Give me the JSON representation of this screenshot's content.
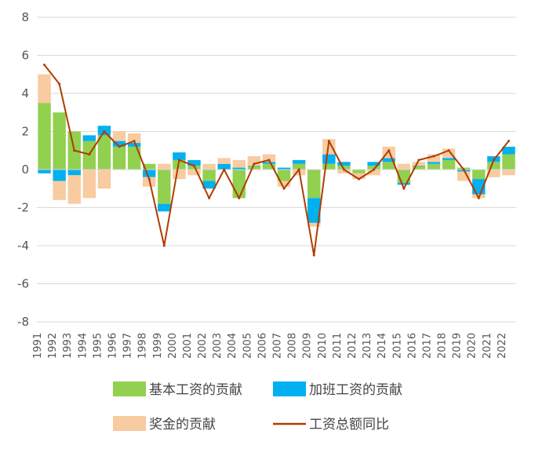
{
  "chart_data": {
    "type": "bar",
    "ylim": [
      -8,
      8
    ],
    "yticks": [
      8,
      6,
      4,
      2,
      0,
      -2,
      -4,
      -6,
      -8
    ],
    "xticks": [
      "1991",
      "1992",
      "1993",
      "1994",
      "1995",
      "1996",
      "1997",
      "1998",
      "1999",
      "2000",
      "2001",
      "2002",
      "2003",
      "2004",
      "2005",
      "2006",
      "2007",
      "2008",
      "2009",
      "2010",
      "2011",
      "2012",
      "2013",
      "2014",
      "2015",
      "2016",
      "2017",
      "2018",
      "2019",
      "2020",
      "2021",
      "2022"
    ],
    "grid": true,
    "legend_position": "bottom",
    "colors": {
      "base": "#92d050",
      "overtime": "#00b0f0",
      "bonus": "#f8cba0",
      "total": "#b03c00"
    },
    "series": [
      {
        "name": "基本工资的贡献",
        "kind": "bar",
        "x": [
          "1991",
          "1992",
          "1993",
          "1994",
          "1995",
          "1996",
          "1997",
          "1998",
          "1999",
          "2000",
          "2001",
          "2002",
          "2003",
          "2004",
          "2005",
          "2006",
          "2007",
          "2008",
          "2009",
          "2010",
          "2011",
          "2012",
          "2013",
          "2014",
          "2015",
          "2016",
          "2017",
          "2018",
          "2019",
          "2020",
          "2021",
          "2022"
        ],
        "values": [
          3.5,
          3.0,
          2.0,
          1.5,
          1.8,
          1.2,
          1.2,
          0.3,
          -1.8,
          0.5,
          0.2,
          -0.6,
          0.0,
          -1.5,
          0.2,
          0.3,
          -0.6,
          0.3,
          -1.5,
          0.3,
          0.2,
          -0.2,
          0.2,
          0.4,
          -0.7,
          0.2,
          0.3,
          0.5,
          0.1,
          -0.5,
          0.4,
          0.8
        ]
      },
      {
        "name": "加班工资的贡献",
        "kind": "bar",
        "x": [
          "1991",
          "1992",
          "1993",
          "1994",
          "1995",
          "1996",
          "1997",
          "1998",
          "1999",
          "2000",
          "2001",
          "2002",
          "2003",
          "2004",
          "2005",
          "2006",
          "2007",
          "2008",
          "2009",
          "2010",
          "2011",
          "2012",
          "2013",
          "2014",
          "2015",
          "2016",
          "2017",
          "2018",
          "2019",
          "2020",
          "2021",
          "2022"
        ],
        "values": [
          -0.2,
          -0.6,
          -0.3,
          0.3,
          0.5,
          0.3,
          0.2,
          -0.4,
          -0.4,
          0.4,
          0.3,
          -0.4,
          0.3,
          0.1,
          0.0,
          0.1,
          0.1,
          0.2,
          -1.3,
          0.5,
          0.2,
          0.0,
          0.2,
          0.2,
          -0.1,
          0.0,
          0.1,
          0.1,
          -0.1,
          -0.8,
          0.3,
          0.4
        ]
      },
      {
        "name": "奖金的贡献",
        "kind": "bar",
        "x": [
          "1991",
          "1992",
          "1993",
          "1994",
          "1995",
          "1996",
          "1997",
          "1998",
          "1999",
          "2000",
          "2001",
          "2002",
          "2003",
          "2004",
          "2005",
          "2006",
          "2007",
          "2008",
          "2009",
          "2010",
          "2011",
          "2012",
          "2013",
          "2014",
          "2015",
          "2016",
          "2017",
          "2018",
          "2019",
          "2020",
          "2021",
          "2022"
        ],
        "values": [
          1.5,
          -1.0,
          -1.5,
          -1.5,
          -1.0,
          0.5,
          0.5,
          -0.5,
          0.3,
          -0.5,
          -0.3,
          0.3,
          0.3,
          0.4,
          0.5,
          0.4,
          -0.3,
          -0.3,
          -0.2,
          0.8,
          -0.2,
          -0.3,
          -0.3,
          0.6,
          0.3,
          0.2,
          0.4,
          0.5,
          -0.5,
          -0.2,
          -0.4,
          -0.3
        ]
      },
      {
        "name": "工资总额同比",
        "kind": "line",
        "x": [
          "1991",
          "1992",
          "1993",
          "1994",
          "1995",
          "1996",
          "1997",
          "1998",
          "1999",
          "2000",
          "2001",
          "2002",
          "2003",
          "2004",
          "2005",
          "2006",
          "2007",
          "2008",
          "2009",
          "2010",
          "2011",
          "2012",
          "2013",
          "2014",
          "2015",
          "2016",
          "2017",
          "2018",
          "2019",
          "2020",
          "2021",
          "2022"
        ],
        "values": [
          5.5,
          4.5,
          1.0,
          0.8,
          2.0,
          1.2,
          1.5,
          -0.5,
          -4.0,
          0.5,
          0.2,
          -1.5,
          0.0,
          -1.5,
          0.3,
          0.5,
          -1.0,
          0.0,
          -4.5,
          1.5,
          0.0,
          -0.5,
          0.0,
          1.0,
          -1.0,
          0.5,
          0.7,
          1.0,
          0.0,
          -1.5,
          0.5,
          1.5
        ]
      }
    ],
    "labels": {
      "legend_base": "基本工资的贡献",
      "legend_overtime": "加班工资的贡献",
      "legend_bonus": "奖金的贡献",
      "legend_total": "工资总额同比"
    }
  }
}
